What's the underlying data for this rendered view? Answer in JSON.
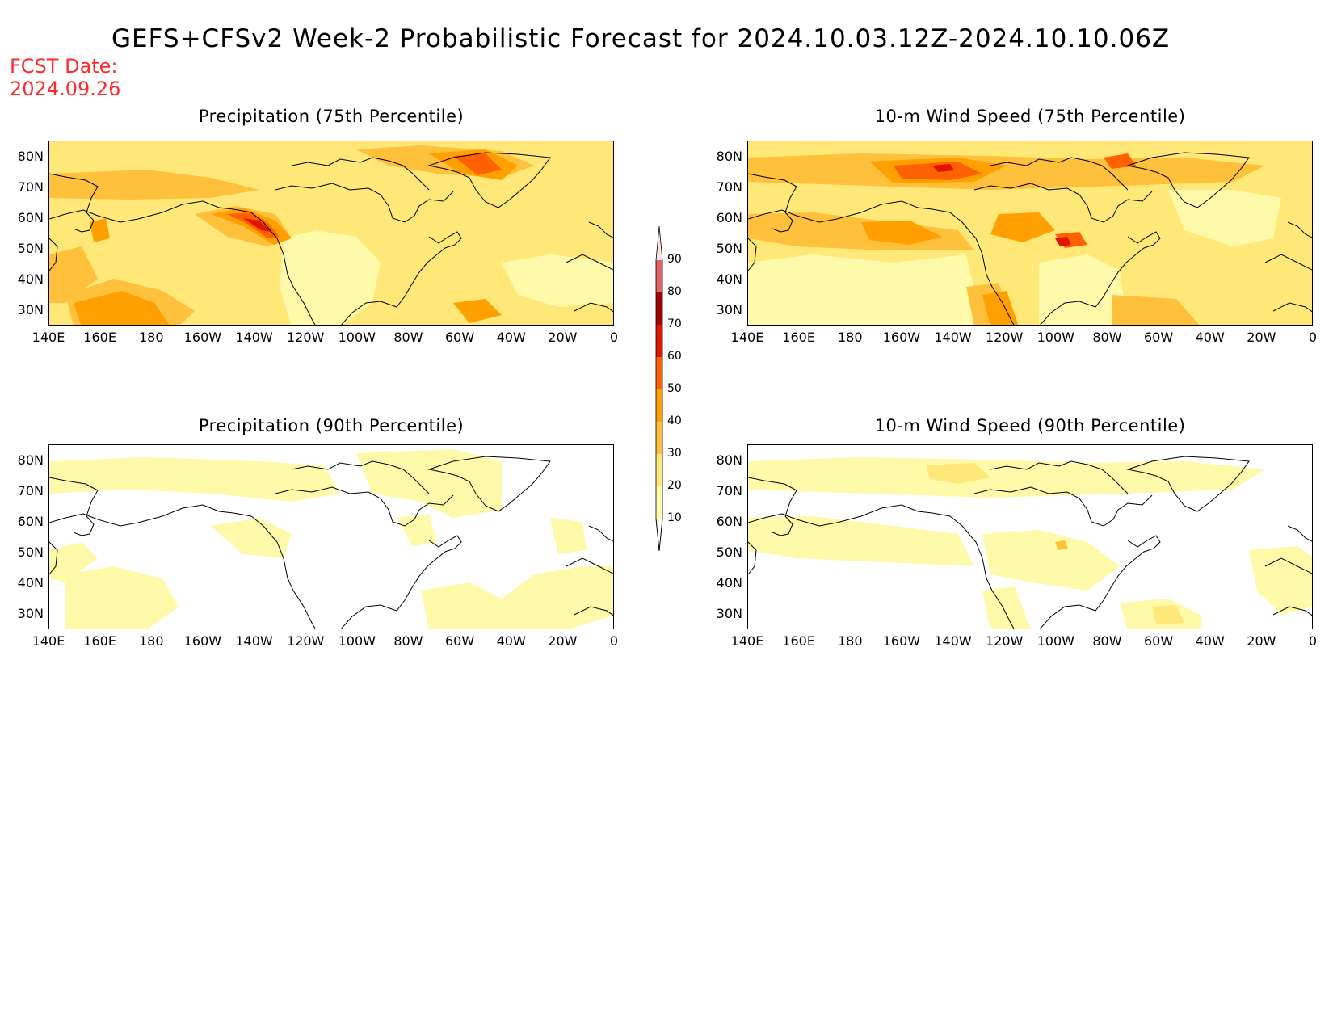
{
  "title": "GEFS+CFSv2 Week-2 Probabilistic Forecast for 2024.10.03.12Z-2024.10.10.06Z",
  "fcst_label": "FCST Date:",
  "fcst_date": "2024.09.26",
  "panels": [
    {
      "title": "Precipitation (75th Percentile)"
    },
    {
      "title": "10-m Wind Speed (75th Percentile)"
    },
    {
      "title": "Precipitation (90th Percentile)"
    },
    {
      "title": "10-m Wind Speed (90th Percentile)"
    }
  ],
  "lat_ticks": [
    "80N",
    "70N",
    "60N",
    "50N",
    "40N",
    "30N"
  ],
  "lon_ticks": [
    "140E",
    "160E",
    "180",
    "160W",
    "140W",
    "120W",
    "100W",
    "80W",
    "60W",
    "40W",
    "20W",
    "0"
  ],
  "colorbar": {
    "levels": [
      "10",
      "20",
      "30",
      "40",
      "50",
      "60",
      "70",
      "80",
      "90"
    ],
    "colors": [
      "#fffaaa",
      "#ffe878",
      "#ffc03c",
      "#ffa000",
      "#ff6000",
      "#e11400",
      "#a50000",
      "#e06464",
      "#f5a0a0",
      "#fde0e0"
    ]
  },
  "colors": {
    "title_red": "#ff2a2a",
    "c1": "#fffaaa",
    "c2": "#ffe878",
    "c3": "#ffc03c",
    "c4": "#ffa000",
    "c5": "#ff6000",
    "c6": "#e11400",
    "c7": "#a50000"
  }
}
